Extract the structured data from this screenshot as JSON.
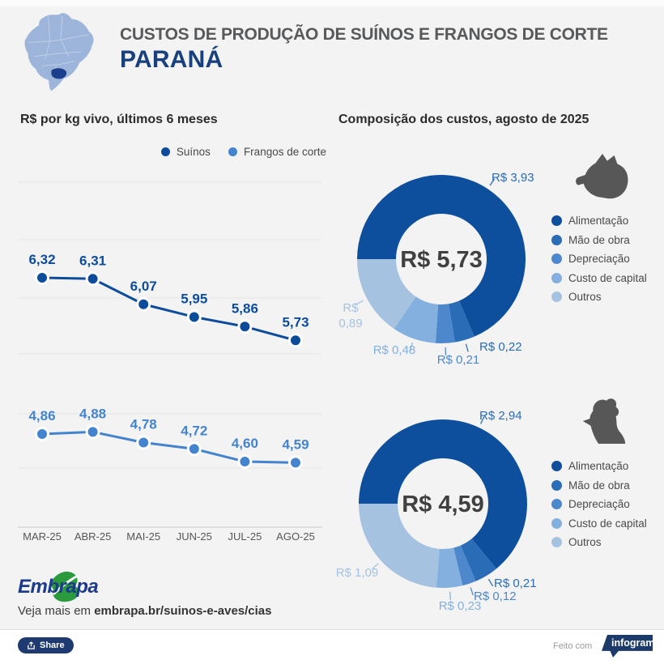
{
  "header": {
    "title_line1": "CUSTOS DE PRODUÇÃO DE SUÍNOS E FRANGOS DE CORTE",
    "title_line2": "PARANÁ",
    "map_icon": "brazil-map-parana-highlighted"
  },
  "sections": {
    "prices_heading": "R$ por kg vivo, últimos 6 meses",
    "composition_heading": "Composição dos custos, agosto de 2025"
  },
  "footer": {
    "logo": "Embrapa",
    "more_text": "Veja mais em ",
    "more_link": "embrapa.br/suinos-e-aves/cias"
  },
  "bottom_bar": {
    "share_label": "Share",
    "made_with": "Feito com",
    "brand": "infogram"
  },
  "colors": {
    "background": "#f3f3f3",
    "title_gray": "#58595b",
    "title_navy": "#17407d",
    "suinos": "#0d4c9b",
    "frangos": "#4484ce",
    "palette": [
      "#0d4f9c",
      "#2a6cb5",
      "#4d88cc",
      "#83b0df",
      "#a5c3e0"
    ],
    "label_alt_dark": "#2a6cb5",
    "icon_gray": "#575757",
    "map_light_blue": "#9db5da",
    "map_state_navy": "#1c3f8d",
    "infogram_navy": "#1c3a6a",
    "embrapa_blue": "#1b3a8c",
    "embrapa_green": "#2a9a3d"
  },
  "chart_data": [
    {
      "type": "line",
      "title": "R$ por kg vivo, últimos 6 meses",
      "categories": [
        "MAR-25",
        "ABR-25",
        "MAI-25",
        "JUN-25",
        "JUL-25",
        "AGO-25"
      ],
      "series": [
        {
          "name": "Suínos",
          "color": "#0d4c9b",
          "values": [
            6.32,
            6.31,
            6.07,
            5.95,
            5.86,
            5.73
          ]
        },
        {
          "name": "Frangos de corte",
          "color": "#4484ce",
          "values": [
            4.86,
            4.88,
            4.78,
            4.72,
            4.6,
            4.59
          ]
        }
      ],
      "unit": "R$ por kg vivo",
      "grid": true,
      "legend_position": "top-right",
      "value_labels": "above points, comma decimal"
    },
    {
      "type": "pie",
      "subtype": "donut",
      "icon": "pig-icon",
      "title": "Composição dos custos — suínos, agosto de 2025",
      "center_label": "R$ 5,73",
      "total": 5.73,
      "start_angle": "left (9 o'clock)",
      "direction": "clockwise",
      "slices": [
        {
          "label": "Alimentação",
          "value": 3.93,
          "display": "R$ 3,93"
        },
        {
          "label": "Mão de obra",
          "value": 0.22,
          "display": "R$ 0,22"
        },
        {
          "label": "Depreciação",
          "value": 0.21,
          "display": "R$ 0,21"
        },
        {
          "label": "Custo de capital",
          "value": 0.48,
          "display": "R$ 0,48"
        },
        {
          "label": "Outros",
          "value": 0.89,
          "display": "R$ 0,89"
        }
      ],
      "legend_position": "right"
    },
    {
      "type": "pie",
      "subtype": "donut",
      "icon": "chicken-icon",
      "title": "Composição dos custos — frangos de corte, agosto de 2025",
      "center_label": "R$ 4,59",
      "total": 4.59,
      "start_angle": "left (9 o'clock)",
      "direction": "clockwise",
      "slices": [
        {
          "label": "Alimentação",
          "value": 2.94,
          "display": "R$ 2,94"
        },
        {
          "label": "Mão de obra",
          "value": 0.21,
          "display": "R$ 0,21"
        },
        {
          "label": "Depreciação",
          "value": 0.12,
          "display": "R$ 0,12"
        },
        {
          "label": "Custo de capital",
          "value": 0.23,
          "display": "R$ 0,23"
        },
        {
          "label": "Outros",
          "value": 1.09,
          "display": "R$ 1,09"
        }
      ],
      "legend_position": "right"
    }
  ]
}
